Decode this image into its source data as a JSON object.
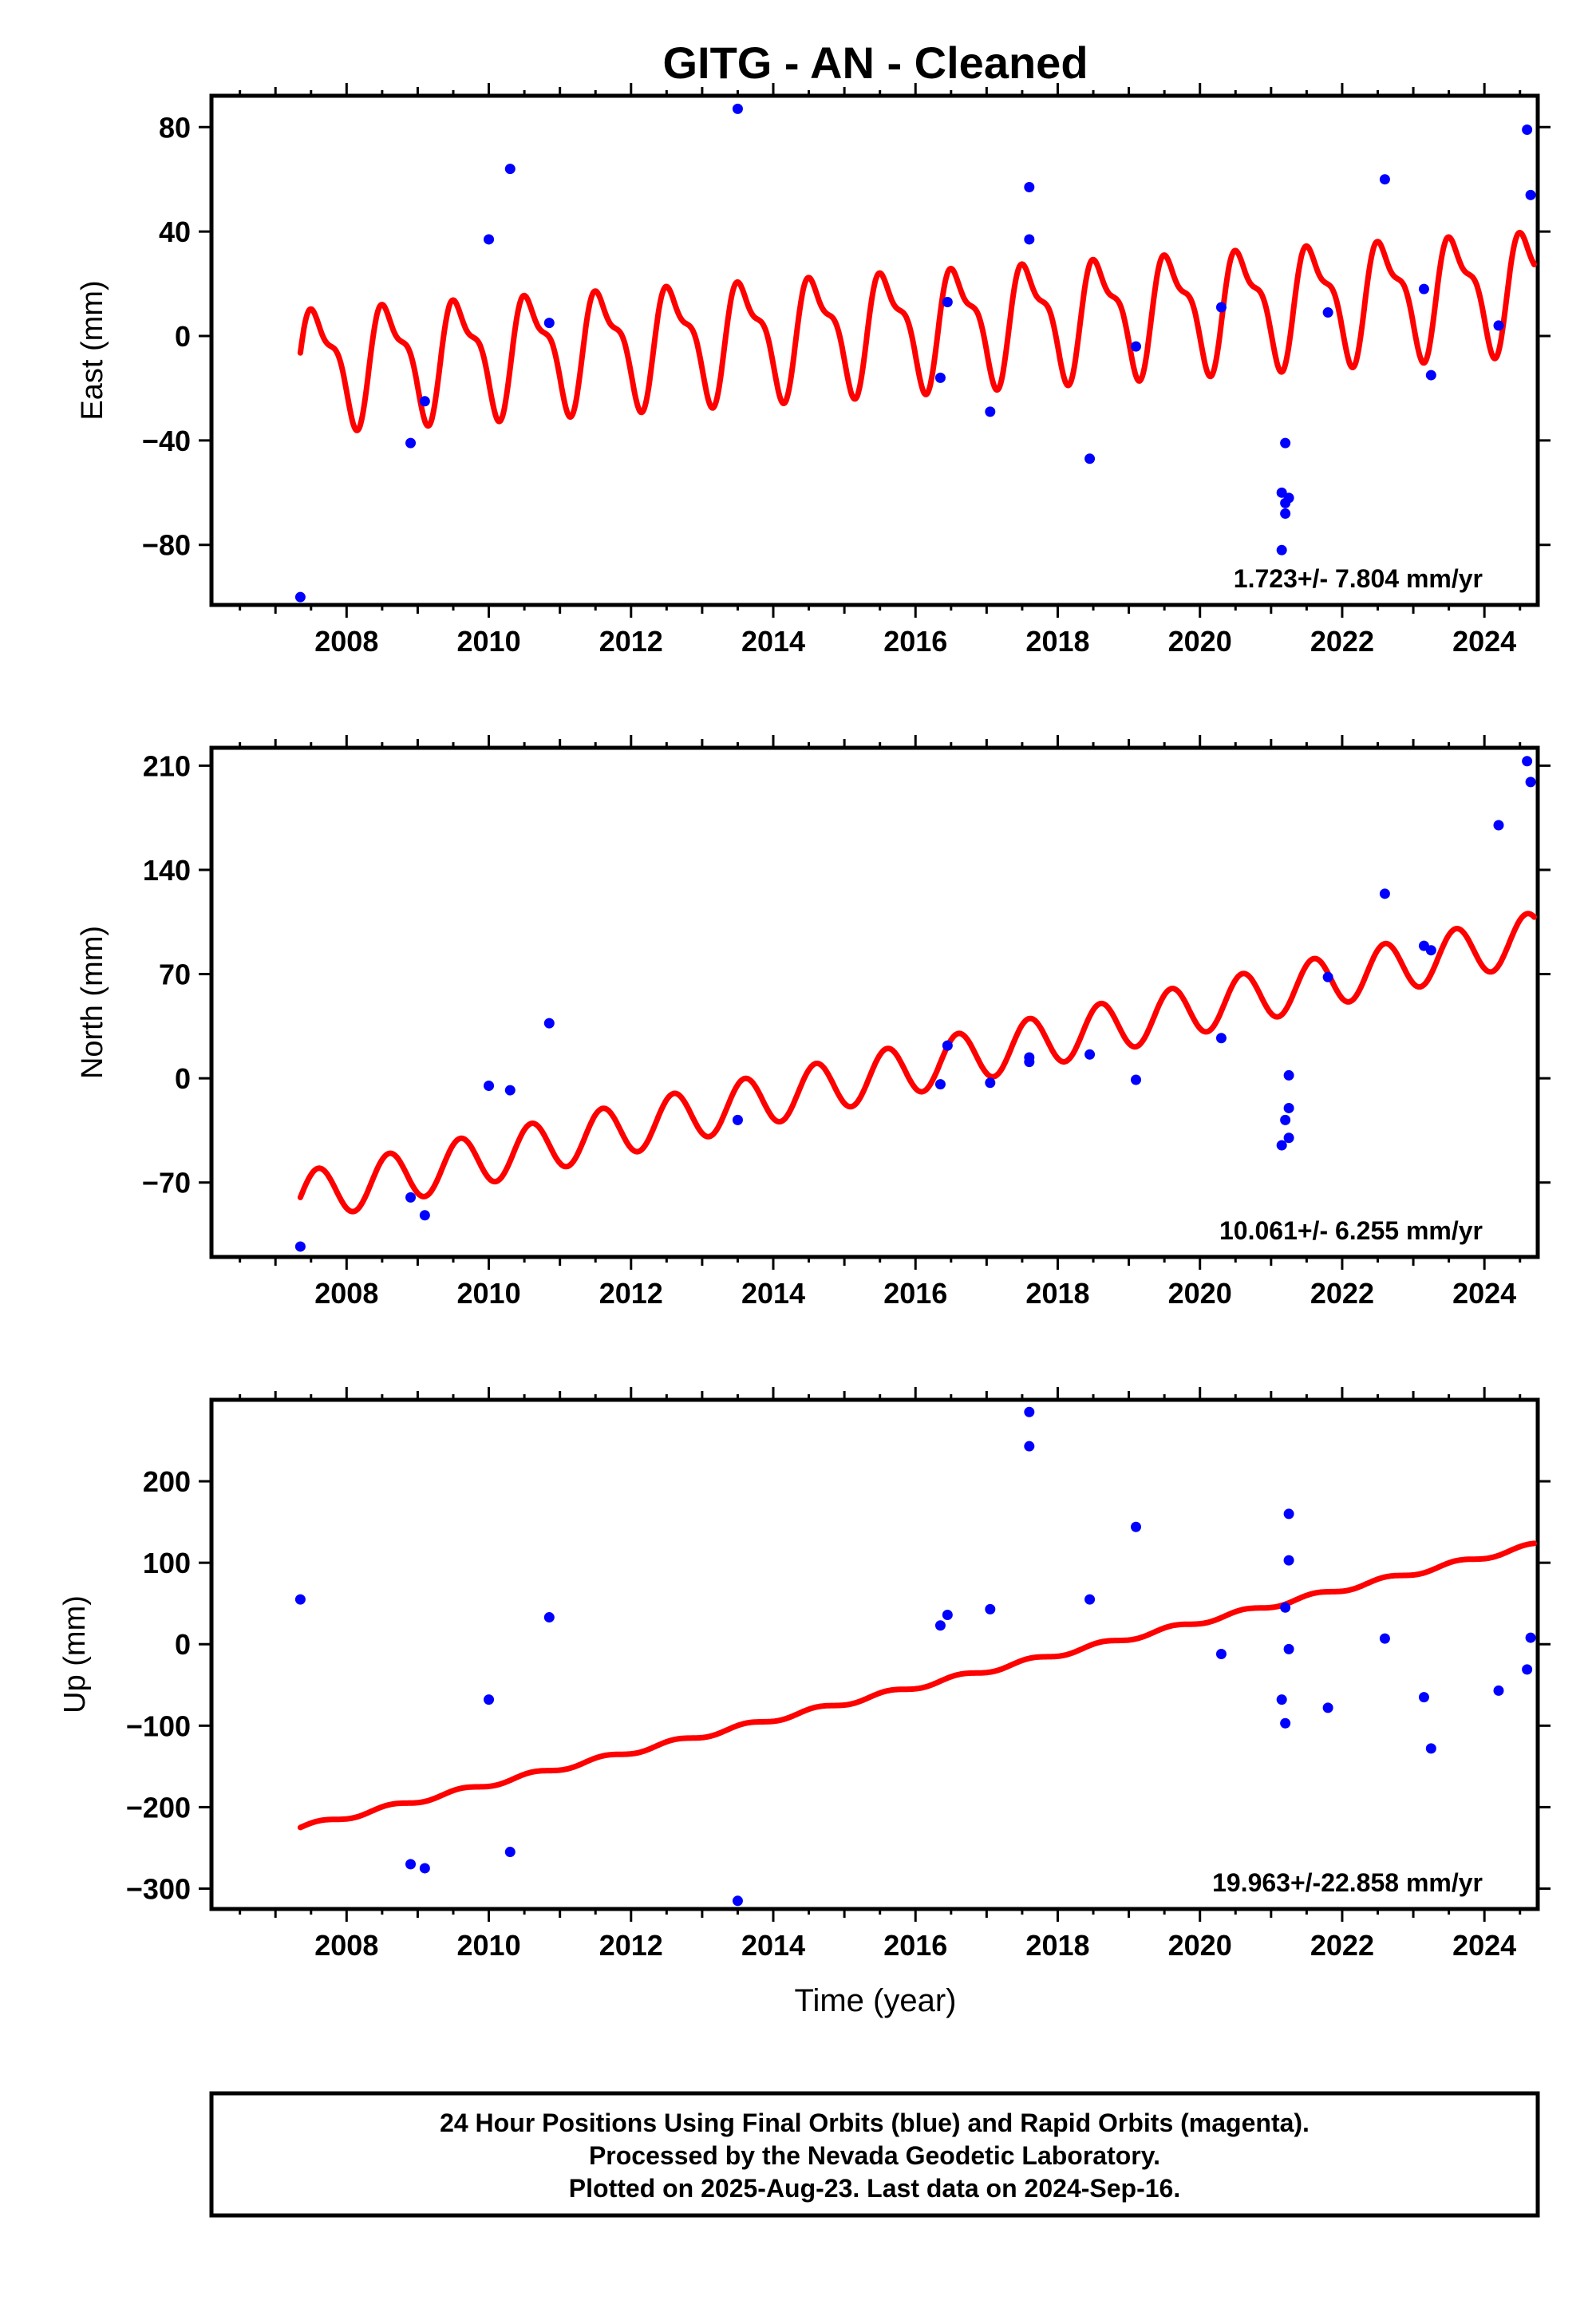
{
  "title": "GITG  - AN - Cleaned",
  "colors": {
    "final_orbits": "#0000ff",
    "model_fit": "#ff0000",
    "frame": "#000000"
  },
  "xlabel": "Time (year)",
  "x_tick_labels": [
    "2008",
    "2010",
    "2012",
    "2014",
    "2016",
    "2018",
    "2020",
    "2022",
    "2024"
  ],
  "footer": {
    "line1": "24 Hour Positions Using Final Orbits (blue) and Rapid Orbits (magenta).",
    "line2": "Processed by the Nevada Geodetic Laboratory.",
    "line3": "Plotted on 2025-Aug-23. Last data on 2024-Sep-16."
  },
  "chart_data": [
    {
      "type": "scatter",
      "ylabel": "East (mm)",
      "xlim": [
        2006.1,
        2024.75
      ],
      "ylim": [
        -103,
        92
      ],
      "y_tick_labels": [
        "80",
        "40",
        "0",
        "−40",
        "−80"
      ],
      "y_ticks": [
        80,
        40,
        0,
        -40,
        -80
      ],
      "rate_label": "1.723+/- 7.804 mm/yr",
      "model": {
        "start": 2007.35,
        "end": 2024.7,
        "offset0": -11,
        "slope": 1.723,
        "annual": 20,
        "semiannual": 8
      },
      "points": [
        [
          2007.35,
          -100
        ],
        [
          2008.9,
          -41
        ],
        [
          2009.1,
          -25
        ],
        [
          2010.0,
          37
        ],
        [
          2010.3,
          64
        ],
        [
          2010.85,
          5
        ],
        [
          2013.5,
          87
        ],
        [
          2016.35,
          -16
        ],
        [
          2016.45,
          13
        ],
        [
          2017.05,
          -29
        ],
        [
          2017.6,
          57
        ],
        [
          2017.6,
          37
        ],
        [
          2018.45,
          -47
        ],
        [
          2019.1,
          -4
        ],
        [
          2020.3,
          11
        ],
        [
          2021.15,
          -60
        ],
        [
          2021.2,
          -41
        ],
        [
          2021.2,
          -64
        ],
        [
          2021.25,
          -62
        ],
        [
          2021.2,
          -68
        ],
        [
          2021.15,
          -82
        ],
        [
          2021.8,
          9
        ],
        [
          2022.6,
          60
        ],
        [
          2023.15,
          18
        ],
        [
          2023.25,
          -15
        ],
        [
          2024.2,
          4
        ],
        [
          2024.6,
          79
        ],
        [
          2024.65,
          54
        ]
      ]
    },
    {
      "type": "scatter",
      "ylabel": "North (mm)",
      "xlim": [
        2006.1,
        2024.75
      ],
      "ylim": [
        -120,
        222
      ],
      "y_tick_labels": [
        "210",
        "140",
        "70",
        "0",
        "−70"
      ],
      "y_ticks": [
        210,
        140,
        70,
        0,
        -70
      ],
      "rate_label": "10.061+/- 6.255 mm/yr",
      "model": {
        "start": 2007.35,
        "end": 2024.7,
        "offset0": -80,
        "slope": 10.061,
        "annual": 17,
        "semiannual": 0
      },
      "points": [
        [
          2007.35,
          -113
        ],
        [
          2008.9,
          -80
        ],
        [
          2009.1,
          -92
        ],
        [
          2010.0,
          -5
        ],
        [
          2010.3,
          -8
        ],
        [
          2010.85,
          37
        ],
        [
          2013.5,
          -28
        ],
        [
          2016.35,
          -4
        ],
        [
          2016.45,
          22
        ],
        [
          2017.05,
          -3
        ],
        [
          2017.6,
          11
        ],
        [
          2017.6,
          14
        ],
        [
          2018.45,
          16
        ],
        [
          2019.1,
          -1
        ],
        [
          2020.3,
          27
        ],
        [
          2021.15,
          -45
        ],
        [
          2021.2,
          -28
        ],
        [
          2021.25,
          -40
        ],
        [
          2021.25,
          -20
        ],
        [
          2021.25,
          2
        ],
        [
          2021.8,
          68
        ],
        [
          2022.6,
          124
        ],
        [
          2023.15,
          89
        ],
        [
          2023.25,
          86
        ],
        [
          2024.2,
          170
        ],
        [
          2024.6,
          213
        ],
        [
          2024.65,
          199
        ]
      ]
    },
    {
      "type": "scatter",
      "ylabel": "Up (mm)",
      "xlim": [
        2006.1,
        2024.75
      ],
      "ylim": [
        -325,
        300
      ],
      "y_tick_labels": [
        "200",
        "100",
        "0",
        "−100",
        "−200",
        "−300"
      ],
      "y_ticks": [
        200,
        100,
        0,
        -100,
        -200,
        -300
      ],
      "rate_label": "19.963+/-22.858 mm/yr",
      "model": {
        "start": 2007.35,
        "end": 2024.7,
        "offset0": -225,
        "slope": 19.963,
        "annual": 3,
        "semiannual": 0
      },
      "points": [
        [
          2007.35,
          55
        ],
        [
          2008.9,
          -270
        ],
        [
          2009.1,
          -275
        ],
        [
          2010.0,
          -68
        ],
        [
          2010.3,
          -255
        ],
        [
          2010.85,
          33
        ],
        [
          2013.5,
          -315
        ],
        [
          2016.35,
          23
        ],
        [
          2016.45,
          36
        ],
        [
          2017.05,
          43
        ],
        [
          2017.6,
          285
        ],
        [
          2017.6,
          243
        ],
        [
          2018.45,
          55
        ],
        [
          2019.1,
          144
        ],
        [
          2020.3,
          -12
        ],
        [
          2021.15,
          -68
        ],
        [
          2021.2,
          45
        ],
        [
          2021.2,
          -97
        ],
        [
          2021.25,
          160
        ],
        [
          2021.25,
          103
        ],
        [
          2021.25,
          -6
        ],
        [
          2021.8,
          -78
        ],
        [
          2022.6,
          7
        ],
        [
          2023.15,
          -65
        ],
        [
          2023.25,
          -128
        ],
        [
          2024.2,
          -57
        ],
        [
          2024.6,
          -31
        ],
        [
          2024.65,
          8
        ]
      ]
    }
  ]
}
